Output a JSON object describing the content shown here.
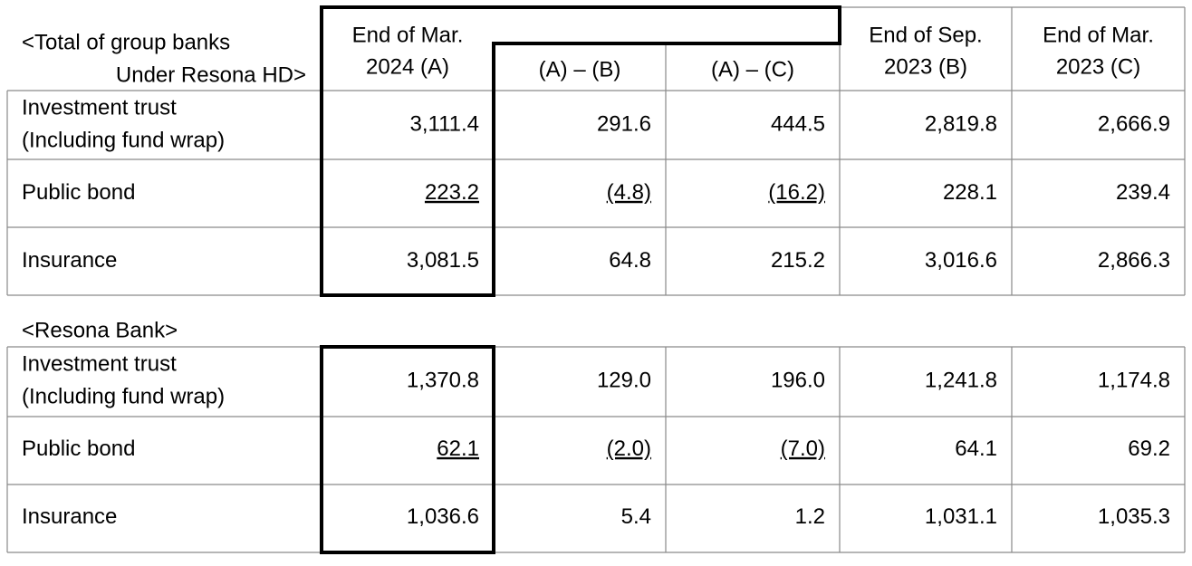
{
  "header": {
    "title_lines": [
      "<Total of group banks",
      "Under Resona HD>"
    ],
    "columns": [
      [
        "End of Mar.",
        "2024 (A)"
      ],
      [
        "(A) – (B)"
      ],
      [
        "(A) – (C)"
      ],
      [
        "End of Sep.",
        "2023 (B)"
      ],
      [
        "End of Mar.",
        "2023 (C)"
      ]
    ]
  },
  "tables": [
    {
      "rows": [
        {
          "label": [
            "Investment trust",
            "(Including fund wrap)"
          ],
          "values": [
            "3,111.4",
            "291.6",
            "444.5",
            "2,819.8",
            "2,666.9"
          ]
        },
        {
          "label": [
            "Public bond"
          ],
          "values": [
            "223.2",
            "(4.8)",
            "(16.2)",
            "228.1",
            "239.4"
          ]
        },
        {
          "label": [
            "Insurance"
          ],
          "values": [
            "3,081.5",
            "64.8",
            "215.2",
            "3,016.6",
            "2,866.3"
          ]
        }
      ]
    },
    {
      "title": "<Resona Bank>",
      "rows": [
        {
          "label": [
            "Investment trust",
            "(Including fund wrap)"
          ],
          "values": [
            "1,370.8",
            "129.0",
            "196.0",
            "1,241.8",
            "1,174.8"
          ]
        },
        {
          "label": [
            "Public bond"
          ],
          "values": [
            "62.1",
            "(2.0)",
            "(7.0)",
            "64.1",
            "69.2"
          ]
        },
        {
          "label": [
            "Insurance"
          ],
          "values": [
            "1,036.6",
            "5.4",
            "1.2",
            "1,031.1",
            "1,035.3"
          ]
        }
      ]
    }
  ]
}
